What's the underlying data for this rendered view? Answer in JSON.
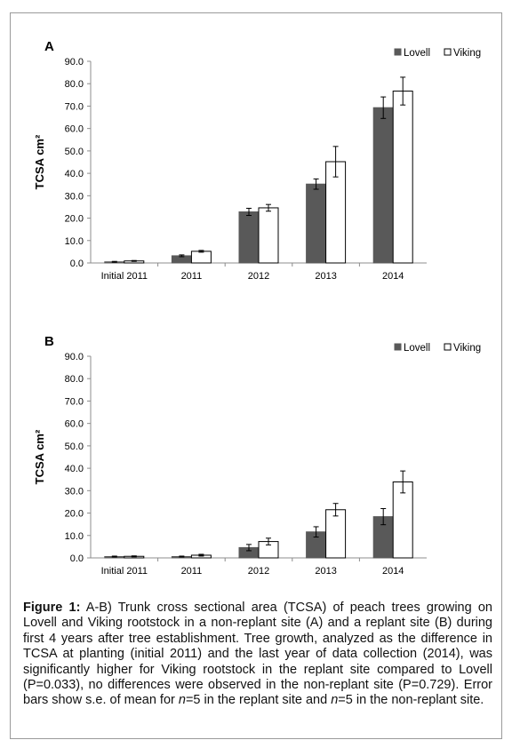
{
  "chart_data": [
    {
      "type": "bar",
      "panel_label": "A",
      "ylabel": "TCSA cm²",
      "categories": [
        "Initial 2011",
        "2011",
        "2012",
        "2013",
        "2014"
      ],
      "ylim": [
        0,
        90
      ],
      "yticks": [
        "0.0",
        "10.0",
        "20.0",
        "30.0",
        "40.0",
        "50.0",
        "60.0",
        "70.0",
        "80.0",
        "90.0"
      ],
      "legend_position": "top-right",
      "grid": false,
      "series": [
        {
          "name": "Lovell",
          "color": "#595959",
          "values": [
            0.5,
            3.2,
            22.8,
            35.2,
            69.3
          ],
          "errors": [
            0.2,
            0.4,
            1.6,
            2.3,
            4.8
          ]
        },
        {
          "name": "Viking",
          "color": "#ffffff",
          "values": [
            0.9,
            5.2,
            24.6,
            45.2,
            76.7
          ],
          "errors": [
            0.2,
            0.4,
            1.5,
            6.8,
            6.2
          ]
        }
      ]
    },
    {
      "type": "bar",
      "panel_label": "B",
      "ylabel": "TCSA cm²",
      "categories": [
        "Initial 2011",
        "2011",
        "2012",
        "2013",
        "2014"
      ],
      "ylim": [
        0,
        90
      ],
      "yticks": [
        "0.0",
        "10.0",
        "20.0",
        "30.0",
        "40.0",
        "50.0",
        "60.0",
        "70.0",
        "80.0",
        "90.0"
      ],
      "legend_position": "top-right",
      "grid": false,
      "series": [
        {
          "name": "Lovell",
          "color": "#595959",
          "values": [
            0.6,
            0.6,
            4.6,
            11.6,
            18.4
          ],
          "errors": [
            0.2,
            0.2,
            1.4,
            2.3,
            3.6
          ]
        },
        {
          "name": "Viking",
          "color": "#ffffff",
          "values": [
            0.7,
            1.2,
            7.3,
            21.5,
            33.9
          ],
          "errors": [
            0.2,
            0.4,
            1.5,
            2.8,
            4.9
          ]
        }
      ]
    }
  ],
  "caption": {
    "label": "Figure 1:",
    "text_1": " A-B) Trunk cross sectional area (TCSA) of peach trees growing on Lovell and Viking rootstock in a non-replant site (A) and a replant site (B) during first 4 years after tree establishment. Tree growth, analyzed as the difference in TCSA at planting (initial 2011) and the last year of data collection (2014), was significantly higher for Viking rootstock in the replant site compared to Lovell (P=0.033), no differences were observed in the non-replant site (P=0.729). Error bars show s.e. of mean for ",
    "n_1": "n",
    "text_2": "=5 in the replant site and ",
    "n_2": "n",
    "text_3": "=5 in the non-replant site."
  }
}
